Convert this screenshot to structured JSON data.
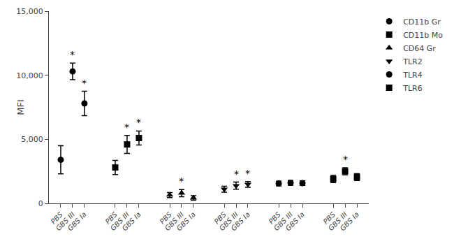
{
  "chart_data": {
    "type": "scatter",
    "ylabel": "MFI",
    "color": "black",
    "grid": false,
    "legend": "right",
    "ylim": [
      0,
      15000
    ],
    "yticks": [
      0,
      {
        "value": 5000,
        "label": "5,000"
      },
      {
        "value": 10000,
        "label": "10,000"
      },
      {
        "value": 15000,
        "label": "15,000"
      }
    ],
    "categories": [
      "PBS",
      "GBS III",
      "GBS Ia",
      "PBS",
      "GBS III",
      "GBS Ia",
      "PBS",
      "GBS III",
      "GBS Ia",
      "PBS",
      "GBS III",
      "GBS Ia",
      "PBS",
      "GBS III",
      "GBS Ia",
      "PBS",
      "GBS III",
      "GBS Ia"
    ],
    "series": [
      {
        "name": "CD11b Gr",
        "marker": "circle",
        "values": [
          3400,
          10300,
          7800,
          null,
          null,
          null,
          null,
          null,
          null,
          null,
          null,
          null,
          null,
          null,
          null,
          null,
          null,
          null
        ],
        "errors": [
          1100,
          650,
          950,
          null,
          null,
          null,
          null,
          null,
          null,
          null,
          null,
          null,
          null,
          null,
          null,
          null,
          null,
          null
        ],
        "annotations": [
          null,
          "*",
          "*",
          null,
          null,
          null,
          null,
          null,
          null,
          null,
          null,
          null,
          null,
          null,
          null,
          null,
          null,
          null
        ]
      },
      {
        "name": "CD11b Mo",
        "marker": "square",
        "values": [
          null,
          null,
          null,
          2800,
          4600,
          5100,
          null,
          null,
          null,
          null,
          null,
          null,
          null,
          null,
          null,
          null,
          null,
          null
        ],
        "errors": [
          null,
          null,
          null,
          550,
          700,
          550,
          null,
          null,
          null,
          null,
          null,
          null,
          null,
          null,
          null,
          null,
          null,
          null
        ],
        "annotations": [
          null,
          null,
          null,
          null,
          "*",
          "*",
          null,
          null,
          null,
          null,
          null,
          null,
          null,
          null,
          null,
          null,
          null,
          null
        ]
      },
      {
        "name": "CD64 Gr",
        "marker": "triangle-up",
        "values": [
          null,
          null,
          null,
          null,
          null,
          null,
          650,
          800,
          420,
          null,
          null,
          null,
          null,
          null,
          null,
          null,
          null,
          null
        ],
        "errors": [
          null,
          null,
          null,
          null,
          null,
          null,
          200,
          280,
          180,
          null,
          null,
          null,
          null,
          null,
          null,
          null,
          null,
          null
        ],
        "annotations": [
          null,
          null,
          null,
          null,
          null,
          null,
          null,
          "*",
          null,
          null,
          null,
          null,
          null,
          null,
          null,
          null,
          null,
          null
        ]
      },
      {
        "name": "TLR2",
        "marker": "triangle-down",
        "values": [
          null,
          null,
          null,
          null,
          null,
          null,
          null,
          null,
          null,
          1100,
          1380,
          1480,
          null,
          null,
          null,
          null,
          null,
          null
        ],
        "errors": [
          null,
          null,
          null,
          null,
          null,
          null,
          null,
          null,
          null,
          230,
          280,
          230,
          null,
          null,
          null,
          null,
          null,
          null
        ],
        "annotations": [
          null,
          null,
          null,
          null,
          null,
          null,
          null,
          null,
          null,
          null,
          "*",
          "*",
          null,
          null,
          null,
          null,
          null,
          null
        ]
      },
      {
        "name": "TLR4",
        "marker": "circle",
        "values": [
          null,
          null,
          null,
          null,
          null,
          null,
          null,
          null,
          null,
          null,
          null,
          null,
          1550,
          1600,
          1580,
          null,
          null,
          null
        ],
        "errors": [
          null,
          null,
          null,
          null,
          null,
          null,
          null,
          null,
          null,
          null,
          null,
          null,
          180,
          180,
          180,
          null,
          null,
          null
        ],
        "annotations": [
          null,
          null,
          null,
          null,
          null,
          null,
          null,
          null,
          null,
          null,
          null,
          null,
          null,
          null,
          null,
          null,
          null,
          null
        ]
      },
      {
        "name": "TLR6",
        "marker": "square",
        "values": [
          null,
          null,
          null,
          null,
          null,
          null,
          null,
          null,
          null,
          null,
          null,
          null,
          null,
          null,
          null,
          1900,
          2500,
          2050
        ],
        "errors": [
          null,
          null,
          null,
          null,
          null,
          null,
          null,
          null,
          null,
          null,
          null,
          null,
          null,
          null,
          null,
          280,
          280,
          270
        ],
        "annotations": [
          null,
          null,
          null,
          null,
          null,
          null,
          null,
          null,
          null,
          null,
          null,
          null,
          null,
          null,
          null,
          null,
          "*",
          null
        ]
      }
    ]
  }
}
